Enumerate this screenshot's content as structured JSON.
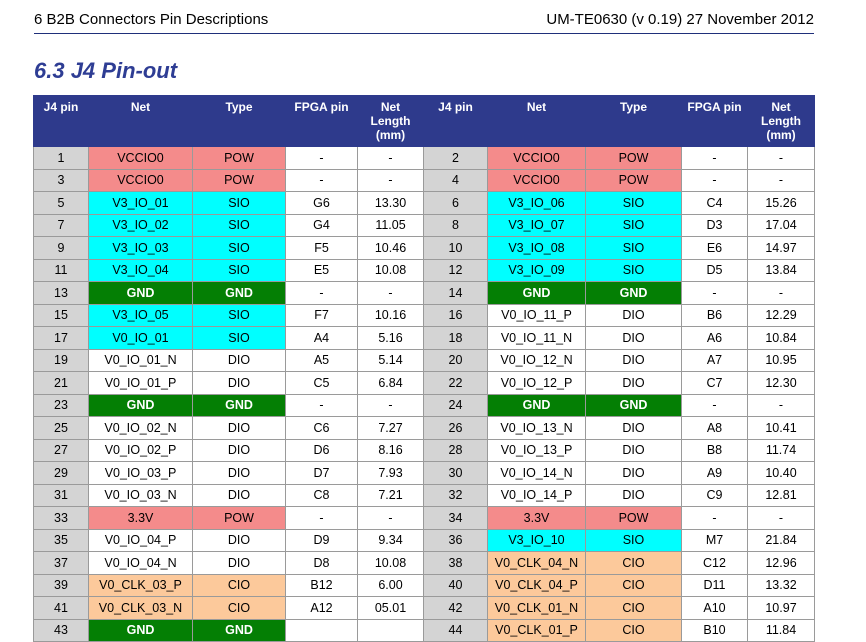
{
  "header": {
    "left": "6 B2B Connectors Pin Descriptions",
    "right": "UM-TE0630 (v 0.19) 27 November 2012"
  },
  "section_title": "6.3 J4 Pin-out",
  "columns": [
    "J4 pin",
    "Net",
    "Type",
    "FPGA pin",
    "Net Length (mm)",
    "J4 pin",
    "Net",
    "Type",
    "FPGA pin",
    "Net Length (mm)"
  ],
  "colors": {
    "header_bg": "#2e3a8c",
    "pin_bg": "#d4d4d4",
    "red": "#f48b8b",
    "cyan": "#00ffff",
    "green": "#047f04",
    "orange": "#fcc99b",
    "white": "#ffffff"
  },
  "rows": [
    {
      "pinA": "1",
      "netA": "VCCIO0",
      "typeA": "POW",
      "fpgaA": "-",
      "lenA": "-",
      "colorA": "red",
      "pinB": "2",
      "netB": "VCCIO0",
      "typeB": "POW",
      "fpgaB": "-",
      "lenB": "-",
      "colorB": "red"
    },
    {
      "pinA": "3",
      "netA": "VCCIO0",
      "typeA": "POW",
      "fpgaA": "-",
      "lenA": "-",
      "colorA": "red",
      "pinB": "4",
      "netB": "VCCIO0",
      "typeB": "POW",
      "fpgaB": "-",
      "lenB": "-",
      "colorB": "red"
    },
    {
      "pinA": "5",
      "netA": "V3_IO_01",
      "typeA": "SIO",
      "fpgaA": "G6",
      "lenA": "13.30",
      "colorA": "cyan",
      "pinB": "6",
      "netB": "V3_IO_06",
      "typeB": "SIO",
      "fpgaB": "C4",
      "lenB": "15.26",
      "colorB": "cyan"
    },
    {
      "pinA": "7",
      "netA": "V3_IO_02",
      "typeA": "SIO",
      "fpgaA": "G4",
      "lenA": "11.05",
      "colorA": "cyan",
      "pinB": "8",
      "netB": "V3_IO_07",
      "typeB": "SIO",
      "fpgaB": "D3",
      "lenB": "17.04",
      "colorB": "cyan"
    },
    {
      "pinA": "9",
      "netA": "V3_IO_03",
      "typeA": "SIO",
      "fpgaA": "F5",
      "lenA": "10.46",
      "colorA": "cyan",
      "pinB": "10",
      "netB": "V3_IO_08",
      "typeB": "SIO",
      "fpgaB": "E6",
      "lenB": "14.97",
      "colorB": "cyan"
    },
    {
      "pinA": "11",
      "netA": "V3_IO_04",
      "typeA": "SIO",
      "fpgaA": "E5",
      "lenA": "10.08",
      "colorA": "cyan",
      "pinB": "12",
      "netB": "V3_IO_09",
      "typeB": "SIO",
      "fpgaB": "D5",
      "lenB": "13.84",
      "colorB": "cyan"
    },
    {
      "pinA": "13",
      "netA": "GND",
      "typeA": "GND",
      "fpgaA": "-",
      "lenA": "-",
      "colorA": "green",
      "pinB": "14",
      "netB": "GND",
      "typeB": "GND",
      "fpgaB": "-",
      "lenB": "-",
      "colorB": "green"
    },
    {
      "pinA": "15",
      "netA": "V3_IO_05",
      "typeA": "SIO",
      "fpgaA": "F7",
      "lenA": "10.16",
      "colorA": "cyan",
      "pinB": "16",
      "netB": "V0_IO_11_P",
      "typeB": "DIO",
      "fpgaB": "B6",
      "lenB": "12.29",
      "colorB": "white"
    },
    {
      "pinA": "17",
      "netA": "V0_IO_01",
      "typeA": "SIO",
      "fpgaA": "A4",
      "lenA": "5.16",
      "colorA": "cyan",
      "pinB": "18",
      "netB": "V0_IO_11_N",
      "typeB": "DIO",
      "fpgaB": "A6",
      "lenB": "10.84",
      "colorB": "white"
    },
    {
      "pinA": "19",
      "netA": "V0_IO_01_N",
      "typeA": "DIO",
      "fpgaA": "A5",
      "lenA": "5.14",
      "colorA": "white",
      "pinB": "20",
      "netB": "V0_IO_12_N",
      "typeB": "DIO",
      "fpgaB": "A7",
      "lenB": "10.95",
      "colorB": "white"
    },
    {
      "pinA": "21",
      "netA": "V0_IO_01_P",
      "typeA": "DIO",
      "fpgaA": "C5",
      "lenA": "6.84",
      "colorA": "white",
      "pinB": "22",
      "netB": "V0_IO_12_P",
      "typeB": "DIO",
      "fpgaB": "C7",
      "lenB": "12.30",
      "colorB": "white"
    },
    {
      "pinA": "23",
      "netA": "GND",
      "typeA": "GND",
      "fpgaA": "-",
      "lenA": "-",
      "colorA": "green",
      "pinB": "24",
      "netB": "GND",
      "typeB": "GND",
      "fpgaB": "-",
      "lenB": "-",
      "colorB": "green"
    },
    {
      "pinA": "25",
      "netA": "V0_IO_02_N",
      "typeA": "DIO",
      "fpgaA": "C6",
      "lenA": "7.27",
      "colorA": "white",
      "pinB": "26",
      "netB": "V0_IO_13_N",
      "typeB": "DIO",
      "fpgaB": "A8",
      "lenB": "10.41",
      "colorB": "white"
    },
    {
      "pinA": "27",
      "netA": "V0_IO_02_P",
      "typeA": "DIO",
      "fpgaA": "D6",
      "lenA": "8.16",
      "colorA": "white",
      "pinB": "28",
      "netB": "V0_IO_13_P",
      "typeB": "DIO",
      "fpgaB": "B8",
      "lenB": "11.74",
      "colorB": "white"
    },
    {
      "pinA": "29",
      "netA": "V0_IO_03_P",
      "typeA": "DIO",
      "fpgaA": "D7",
      "lenA": "7.93",
      "colorA": "white",
      "pinB": "30",
      "netB": "V0_IO_14_N",
      "typeB": "DIO",
      "fpgaB": "A9",
      "lenB": "10.40",
      "colorB": "white"
    },
    {
      "pinA": "31",
      "netA": "V0_IO_03_N",
      "typeA": "DIO",
      "fpgaA": "C8",
      "lenA": "7.21",
      "colorA": "white",
      "pinB": "32",
      "netB": "V0_IO_14_P",
      "typeB": "DIO",
      "fpgaB": "C9",
      "lenB": "12.81",
      "colorB": "white"
    },
    {
      "pinA": "33",
      "netA": "3.3V",
      "typeA": "POW",
      "fpgaA": "-",
      "lenA": "-",
      "colorA": "red",
      "pinB": "34",
      "netB": "3.3V",
      "typeB": "POW",
      "fpgaB": "-",
      "lenB": "-",
      "colorB": "red"
    },
    {
      "pinA": "35",
      "netA": "V0_IO_04_P",
      "typeA": "DIO",
      "fpgaA": "D9",
      "lenA": "9.34",
      "colorA": "white",
      "pinB": "36",
      "netB": "V3_IO_10",
      "typeB": "SIO",
      "fpgaB": "M7",
      "lenB": "21.84",
      "colorB": "cyan"
    },
    {
      "pinA": "37",
      "netA": "V0_IO_04_N",
      "typeA": "DIO",
      "fpgaA": "D8",
      "lenA": "10.08",
      "colorA": "white",
      "pinB": "38",
      "netB": "V0_CLK_04_N",
      "typeB": "CIO",
      "fpgaB": "C12",
      "lenB": "12.96",
      "colorB": "orange"
    },
    {
      "pinA": "39",
      "netA": "V0_CLK_03_P",
      "typeA": "CIO",
      "fpgaA": "B12",
      "lenA": "6.00",
      "colorA": "orange",
      "pinB": "40",
      "netB": "V0_CLK_04_P",
      "typeB": "CIO",
      "fpgaB": "D11",
      "lenB": "13.32",
      "colorB": "orange"
    },
    {
      "pinA": "41",
      "netA": "V0_CLK_03_N",
      "typeA": "CIO",
      "fpgaA": "A12",
      "lenA": "05.01",
      "colorA": "orange",
      "pinB": "42",
      "netB": "V0_CLK_01_N",
      "typeB": "CIO",
      "fpgaB": "A10",
      "lenB": "10.97",
      "colorB": "orange"
    },
    {
      "pinA": "43",
      "netA": "GND",
      "typeA": "GND",
      "fpgaA": "",
      "lenA": "",
      "colorA": "green",
      "pinB": "44",
      "netB": "V0_CLK_01_P",
      "typeB": "CIO",
      "fpgaB": "B10",
      "lenB": "11.84",
      "colorB": "orange"
    }
  ]
}
